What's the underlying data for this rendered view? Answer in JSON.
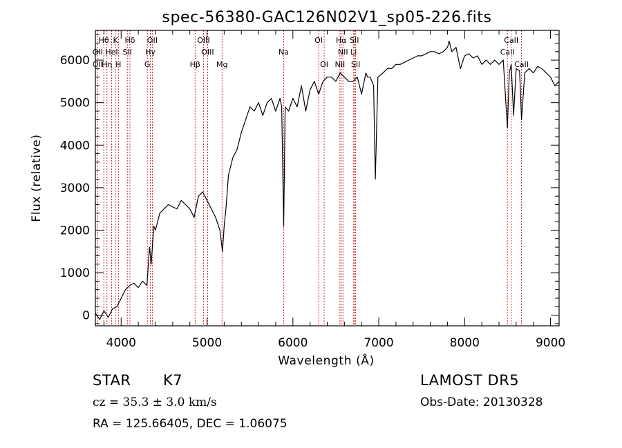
{
  "chart_data": {
    "type": "line",
    "title": "spec-56380-GAC126N02V1_sp05-226.fits",
    "xlabel": "Wavelength (Å)",
    "ylabel": "Flux (relative)",
    "xlim": [
      3700,
      9100
    ],
    "ylim": [
      -250,
      6700
    ],
    "xticks": [
      4000,
      5000,
      6000,
      7000,
      8000,
      9000
    ],
    "yticks": [
      0,
      1000,
      2000,
      3000,
      4000,
      5000,
      6000
    ],
    "line_color": "#000000",
    "marker_color": "#cc0000",
    "series": [
      {
        "x": [
          3700,
          3750,
          3800,
          3850,
          3900,
          3950,
          4000,
          4050,
          4100,
          4150,
          4200,
          4250,
          4300,
          4330,
          4350,
          4380,
          4400,
          4450,
          4500,
          4550,
          4600,
          4650,
          4700,
          4750,
          4800,
          4850,
          4880,
          4900,
          4950,
          5000,
          5050,
          5100,
          5150,
          5180,
          5200,
          5220,
          5250,
          5300,
          5350,
          5400,
          5450,
          5500,
          5550,
          5600,
          5650,
          5700,
          5750,
          5800,
          5850,
          5870,
          5893,
          5910,
          5950,
          6000,
          6050,
          6100,
          6150,
          6200,
          6250,
          6300,
          6350,
          6400,
          6450,
          6500,
          6550,
          6600,
          6650,
          6700,
          6750,
          6800,
          6850,
          6870,
          6900,
          6940,
          6960,
          6990,
          7050,
          7100,
          7150,
          7200,
          7250,
          7300,
          7350,
          7400,
          7450,
          7500,
          7550,
          7600,
          7650,
          7700,
          7750,
          7800,
          7820,
          7850,
          7900,
          7950,
          8000,
          8050,
          8100,
          8150,
          8200,
          8250,
          8300,
          8350,
          8400,
          8450,
          8498,
          8520,
          8542,
          8570,
          8600,
          8640,
          8662,
          8700,
          8750,
          8800,
          8850,
          8900,
          8950,
          9000,
          9050,
          9100
        ],
        "values": [
          50,
          -100,
          100,
          -50,
          150,
          200,
          400,
          600,
          700,
          750,
          650,
          800,
          700,
          1600,
          1200,
          2100,
          2000,
          2400,
          2500,
          2600,
          2550,
          2500,
          2700,
          2600,
          2500,
          2300,
          2600,
          2800,
          2900,
          2700,
          2500,
          2300,
          2000,
          1500,
          2100,
          2500,
          3300,
          3700,
          3900,
          4300,
          4600,
          4900,
          4800,
          5000,
          4700,
          5000,
          5100,
          4800,
          5100,
          4900,
          2100,
          4900,
          4800,
          5100,
          4900,
          5400,
          4800,
          5300,
          5500,
          5200,
          5500,
          5600,
          5600,
          5500,
          5700,
          5600,
          5500,
          5500,
          5600,
          5200,
          5700,
          5600,
          5600,
          5400,
          3200,
          5600,
          5700,
          5800,
          5800,
          5900,
          5900,
          5950,
          6000,
          6050,
          6100,
          6100,
          6150,
          6200,
          6200,
          6150,
          6200,
          6300,
          6450,
          6200,
          6300,
          5800,
          6100,
          6150,
          6050,
          6100,
          5900,
          6000,
          5900,
          6000,
          5900,
          6000,
          4400,
          5700,
          5900,
          4700,
          5800,
          5750,
          4600,
          5700,
          5800,
          5700,
          5850,
          5800,
          5700,
          5600,
          5400,
          5500
        ]
      }
    ],
    "lines": [
      {
        "label": "Hθ",
        "row": 1,
        "x": 3798
      },
      {
        "label": "K",
        "row": 1,
        "x": 3934
      },
      {
        "label": "Hδ",
        "row": 1,
        "x": 4102
      },
      {
        "label": "OII",
        "row": 1,
        "x": 4363
      },
      {
        "label": "OIII",
        "row": 1,
        "x": 4959
      },
      {
        "label": "OI",
        "row": 1,
        "x": 6300
      },
      {
        "label": "Hα",
        "row": 1,
        "x": 6563
      },
      {
        "label": "SII",
        "row": 1,
        "x": 6716
      },
      {
        "label": "CaII",
        "row": 1,
        "x": 8542
      },
      {
        "label": "OII",
        "row": 2,
        "x": 3727
      },
      {
        "label": "HeI",
        "row": 2,
        "x": 3889
      },
      {
        "label": "SII",
        "row": 2,
        "x": 4072
      },
      {
        "label": "Hγ",
        "row": 2,
        "x": 4340
      },
      {
        "label": "OIII",
        "row": 2,
        "x": 5007
      },
      {
        "label": "Na",
        "row": 2,
        "x": 5893
      },
      {
        "label": "NII",
        "row": 2,
        "x": 6583
      },
      {
        "label": "Li",
        "row": 2,
        "x": 6708
      },
      {
        "label": "CaII",
        "row": 2,
        "x": 8498
      },
      {
        "label": "OII",
        "row": 3,
        "x": 3727
      },
      {
        "label": "Hη",
        "row": 3,
        "x": 3835
      },
      {
        "label": "H",
        "row": 3,
        "x": 3968
      },
      {
        "label": "G",
        "row": 3,
        "x": 4305
      },
      {
        "label": "Hβ",
        "row": 3,
        "x": 4861
      },
      {
        "label": "Mg",
        "row": 3,
        "x": 5175
      },
      {
        "label": "OI",
        "row": 3,
        "x": 6364
      },
      {
        "label": "NII",
        "row": 3,
        "x": 6548
      },
      {
        "label": "SII",
        "row": 3,
        "x": 6731
      },
      {
        "label": "CaII",
        "row": 3,
        "x": 8662
      }
    ]
  },
  "info": {
    "object_class": "STAR",
    "subclass": "K7",
    "survey": "LAMOST DR5",
    "redshift": "cz = 35.3 ± 3.0 km/s",
    "obs_date": "Obs-Date: 20130328",
    "coords": "RA = 125.66405, DEC =   1.06075"
  }
}
